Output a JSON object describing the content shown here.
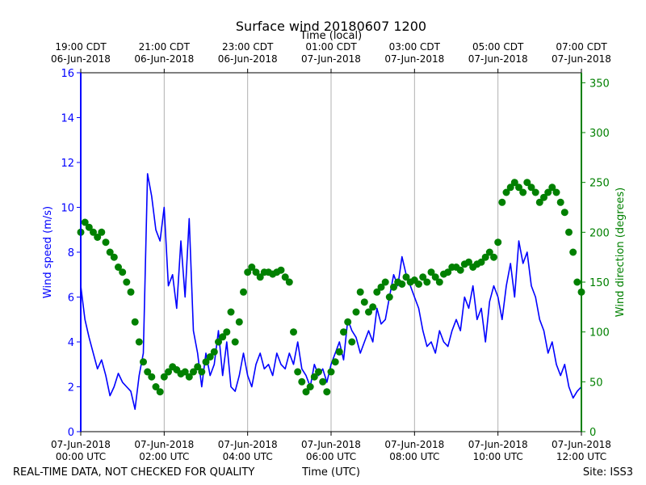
{
  "chart_data": {
    "type": "line",
    "title": "Surface wind 20180607 1200",
    "xlabel_top": "Time (local)",
    "xlabel_bottom": "Time (UTC)",
    "ylabel_left": "Wind speed (m/s)",
    "ylabel_right": "Wind direction (degrees)",
    "xlim_hours_utc": [
      0,
      12
    ],
    "ylim_left": [
      0,
      16
    ],
    "ylim_right": [
      0,
      360
    ],
    "yticks_left": [
      0,
      2,
      4,
      6,
      8,
      10,
      12,
      14,
      16
    ],
    "yticks_right": [
      0,
      50,
      100,
      150,
      200,
      250,
      300,
      350
    ],
    "xticks_bottom": [
      {
        "hour": 0,
        "line1": "07-Jun-2018",
        "line2": "00:00 UTC"
      },
      {
        "hour": 2,
        "line1": "07-Jun-2018",
        "line2": "02:00 UTC"
      },
      {
        "hour": 4,
        "line1": "07-Jun-2018",
        "line2": "04:00 UTC"
      },
      {
        "hour": 6,
        "line1": "07-Jun-2018",
        "line2": "06:00 UTC"
      },
      {
        "hour": 8,
        "line1": "07-Jun-2018",
        "line2": "08:00 UTC"
      },
      {
        "hour": 10,
        "line1": "07-Jun-2018",
        "line2": "10:00 UTC"
      },
      {
        "hour": 12,
        "line1": "07-Jun-2018",
        "line2": "12:00 UTC"
      }
    ],
    "xticks_top": [
      {
        "hour": 0,
        "line1": "19:00 CDT",
        "line2": "06-Jun-2018"
      },
      {
        "hour": 2,
        "line1": "21:00 CDT",
        "line2": "06-Jun-2018"
      },
      {
        "hour": 4,
        "line1": "23:00 CDT",
        "line2": "06-Jun-2018"
      },
      {
        "hour": 6,
        "line1": "01:00 CDT",
        "line2": "07-Jun-2018"
      },
      {
        "hour": 8,
        "line1": "03:00 CDT",
        "line2": "07-Jun-2018"
      },
      {
        "hour": 10,
        "line1": "05:00 CDT",
        "line2": "07-Jun-2018"
      },
      {
        "hour": 12,
        "line1": "07:00 CDT",
        "line2": "07-Jun-2018"
      }
    ],
    "grid": "vertical",
    "series": [
      {
        "name": "Wind speed",
        "axis": "left",
        "style": "line",
        "color": "#0000ff",
        "x_hours": [
          0.0,
          0.1,
          0.2,
          0.3,
          0.4,
          0.5,
          0.6,
          0.7,
          0.8,
          0.9,
          1.0,
          1.1,
          1.2,
          1.3,
          1.4,
          1.5,
          1.6,
          1.7,
          1.8,
          1.9,
          2.0,
          2.1,
          2.2,
          2.3,
          2.4,
          2.5,
          2.6,
          2.7,
          2.8,
          2.9,
          3.0,
          3.1,
          3.2,
          3.3,
          3.4,
          3.5,
          3.6,
          3.7,
          3.8,
          3.9,
          4.0,
          4.1,
          4.2,
          4.3,
          4.4,
          4.5,
          4.6,
          4.7,
          4.8,
          4.9,
          5.0,
          5.1,
          5.2,
          5.3,
          5.4,
          5.5,
          5.6,
          5.7,
          5.8,
          5.9,
          6.0,
          6.1,
          6.2,
          6.3,
          6.4,
          6.5,
          6.6,
          6.7,
          6.8,
          6.9,
          7.0,
          7.1,
          7.2,
          7.3,
          7.4,
          7.5,
          7.6,
          7.7,
          7.8,
          7.9,
          8.0,
          8.1,
          8.2,
          8.3,
          8.4,
          8.5,
          8.6,
          8.7,
          8.8,
          8.9,
          9.0,
          9.1,
          9.2,
          9.3,
          9.4,
          9.5,
          9.6,
          9.7,
          9.8,
          9.9,
          10.0,
          10.1,
          10.2,
          10.3,
          10.4,
          10.5,
          10.6,
          10.7,
          10.8,
          10.9,
          11.0,
          11.1,
          11.2,
          11.3,
          11.4,
          11.5,
          11.6,
          11.7,
          11.8,
          11.9,
          12.0
        ],
        "values": [
          6.5,
          5.0,
          4.2,
          3.5,
          2.8,
          3.2,
          2.5,
          1.6,
          2.0,
          2.6,
          2.2,
          2.0,
          1.8,
          1.0,
          2.5,
          3.5,
          11.5,
          10.5,
          9.0,
          8.5,
          10.0,
          6.5,
          7.0,
          5.5,
          8.5,
          6.0,
          9.5,
          4.5,
          3.5,
          2.0,
          3.5,
          2.5,
          3.0,
          4.5,
          2.5,
          4.0,
          2.0,
          1.8,
          2.5,
          3.5,
          2.5,
          2.0,
          3.0,
          3.5,
          2.8,
          3.0,
          2.5,
          3.5,
          3.0,
          2.8,
          3.5,
          3.0,
          4.0,
          2.8,
          2.5,
          2.0,
          3.0,
          2.5,
          2.8,
          2.2,
          3.0,
          3.5,
          4.0,
          3.2,
          5.0,
          4.5,
          4.2,
          3.5,
          4.0,
          4.5,
          4.0,
          5.5,
          4.8,
          5.0,
          6.0,
          7.0,
          6.5,
          7.8,
          7.0,
          6.5,
          6.0,
          5.5,
          4.5,
          3.8,
          4.0,
          3.5,
          4.5,
          4.0,
          3.8,
          4.5,
          5.0,
          4.5,
          6.0,
          5.5,
          6.5,
          5.0,
          5.5,
          4.0,
          5.8,
          6.5,
          6.0,
          5.0,
          6.5,
          7.5,
          6.0,
          8.5,
          7.5,
          8.0,
          6.5,
          6.0,
          5.0,
          4.5,
          3.5,
          4.0,
          3.0,
          2.5,
          3.0,
          2.0,
          1.5,
          1.8,
          2.0
        ]
      },
      {
        "name": "Wind direction",
        "axis": "right",
        "style": "markers",
        "color": "#008000",
        "x_hours": [
          0.0,
          0.1,
          0.2,
          0.3,
          0.4,
          0.5,
          0.6,
          0.7,
          0.8,
          0.9,
          1.0,
          1.1,
          1.2,
          1.3,
          1.4,
          1.5,
          1.6,
          1.7,
          1.8,
          1.9,
          2.0,
          2.1,
          2.2,
          2.3,
          2.4,
          2.5,
          2.6,
          2.7,
          2.8,
          2.9,
          3.0,
          3.1,
          3.2,
          3.3,
          3.4,
          3.5,
          3.6,
          3.7,
          3.8,
          3.9,
          4.0,
          4.1,
          4.2,
          4.3,
          4.4,
          4.5,
          4.6,
          4.7,
          4.8,
          4.9,
          5.0,
          5.1,
          5.2,
          5.3,
          5.4,
          5.5,
          5.6,
          5.7,
          5.8,
          5.9,
          6.0,
          6.1,
          6.2,
          6.3,
          6.4,
          6.5,
          6.6,
          6.7,
          6.8,
          6.9,
          7.0,
          7.1,
          7.2,
          7.3,
          7.4,
          7.5,
          7.6,
          7.7,
          7.8,
          7.9,
          8.0,
          8.1,
          8.2,
          8.3,
          8.4,
          8.5,
          8.6,
          8.7,
          8.8,
          8.9,
          9.0,
          9.1,
          9.2,
          9.3,
          9.4,
          9.5,
          9.6,
          9.7,
          9.8,
          9.9,
          10.0,
          10.1,
          10.2,
          10.3,
          10.4,
          10.5,
          10.6,
          10.7,
          10.8,
          10.9,
          11.0,
          11.1,
          11.2,
          11.3,
          11.4,
          11.5,
          11.6,
          11.7,
          11.8,
          11.9,
          12.0
        ],
        "values": [
          200,
          210,
          205,
          200,
          195,
          200,
          190,
          180,
          175,
          165,
          160,
          150,
          140,
          110,
          90,
          70,
          60,
          55,
          45,
          40,
          55,
          60,
          65,
          62,
          58,
          60,
          55,
          60,
          65,
          60,
          70,
          75,
          80,
          90,
          95,
          100,
          120,
          90,
          110,
          140,
          160,
          165,
          160,
          155,
          160,
          160,
          158,
          160,
          162,
          155,
          150,
          100,
          60,
          50,
          40,
          45,
          55,
          60,
          50,
          40,
          60,
          70,
          80,
          100,
          110,
          90,
          120,
          140,
          130,
          120,
          125,
          140,
          145,
          150,
          135,
          145,
          150,
          148,
          155,
          150,
          152,
          148,
          155,
          150,
          160,
          155,
          150,
          158,
          160,
          165,
          165,
          162,
          168,
          170,
          165,
          168,
          170,
          175,
          180,
          175,
          190,
          230,
          240,
          245,
          250,
          245,
          240,
          250,
          245,
          240,
          230,
          235,
          240,
          245,
          240,
          230,
          220,
          200,
          180,
          150,
          140
        ]
      }
    ],
    "footer_left": "REAL-TIME DATA, NOT CHECKED FOR QUALITY",
    "footer_right": "Site: ISS3"
  },
  "colors": {
    "speed": "#0000ff",
    "direction": "#008000",
    "grid": "#b0b0b0",
    "axis": "#000000"
  }
}
